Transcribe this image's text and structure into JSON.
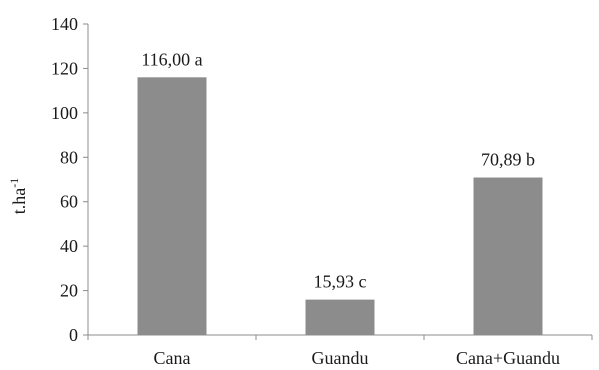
{
  "chart_data": {
    "type": "bar",
    "categories": [
      "Cana",
      "Guandu",
      "Cana+Guandu"
    ],
    "values": [
      116.0,
      15.93,
      70.89
    ],
    "data_labels": [
      "116,00 a",
      "15,93 c",
      "70,89 b"
    ],
    "title": "",
    "xlabel": "",
    "ylabel": "t.ha",
    "ylabel_superscript": "-1",
    "ylim": [
      0,
      140
    ],
    "yticks": [
      0,
      20,
      40,
      60,
      80,
      100,
      120,
      140
    ],
    "grid": false,
    "legend": "none",
    "bar_color": "#8c8c8c"
  }
}
